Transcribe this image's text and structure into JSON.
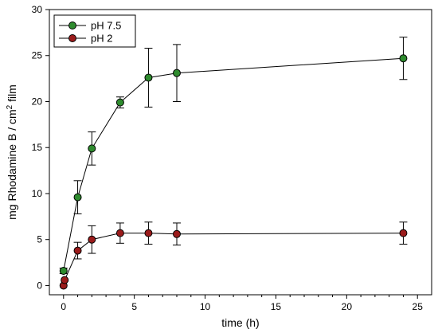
{
  "chart_data": {
    "type": "line",
    "xlabel": "time (h)",
    "ylabel_main": "mg Rhodamine B / cm",
    "ylabel_sup": "2",
    "ylabel_tail": " film",
    "xlim": [
      -1,
      26
    ],
    "ylim": [
      -1,
      30
    ],
    "xticks": [
      0,
      5,
      10,
      15,
      20,
      25
    ],
    "yticks": [
      0,
      5,
      10,
      15,
      20,
      25,
      30
    ],
    "grid": false,
    "legend_position": "top-left",
    "series": [
      {
        "name": "pH 7.5",
        "color": "#2e8b2e",
        "points": [
          {
            "x": 0,
            "y": 1.6,
            "err": 0.3
          },
          {
            "x": 1,
            "y": 9.6,
            "err": 1.8
          },
          {
            "x": 2,
            "y": 14.9,
            "err": 1.8
          },
          {
            "x": 4,
            "y": 19.9,
            "err": 0.6
          },
          {
            "x": 6,
            "y": 22.6,
            "err": 3.2
          },
          {
            "x": 8,
            "y": 23.1,
            "err": 3.1
          },
          {
            "x": 24,
            "y": 24.7,
            "err": 2.3
          }
        ]
      },
      {
        "name": "pH 2",
        "color": "#9b1b1b",
        "points": [
          {
            "x": 0,
            "y": 0.0,
            "err": 0
          },
          {
            "x": 0.08,
            "y": 0.6,
            "err": 0
          },
          {
            "x": 1,
            "y": 3.8,
            "err": 0.9
          },
          {
            "x": 2,
            "y": 5.0,
            "err": 1.5
          },
          {
            "x": 4,
            "y": 5.7,
            "err": 1.1
          },
          {
            "x": 6,
            "y": 5.7,
            "err": 1.2
          },
          {
            "x": 8,
            "y": 5.6,
            "err": 1.2
          },
          {
            "x": 24,
            "y": 5.7,
            "err": 1.2
          }
        ]
      }
    ]
  }
}
